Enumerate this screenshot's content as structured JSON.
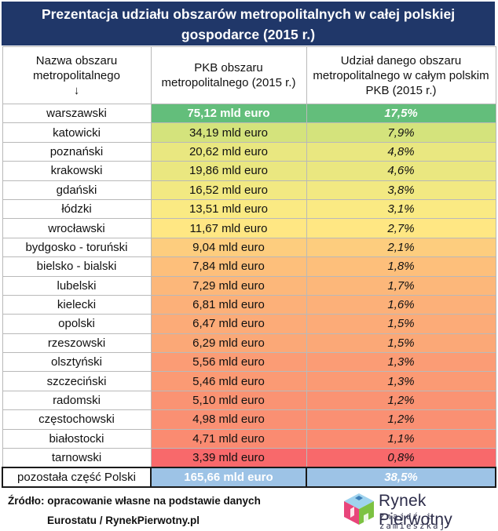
{
  "title": "Prezentacja udziału obszarów metropolitalnych w całej polskiej gospodarce (2015 r.)",
  "headers": {
    "name": "Nazwa obszaru metropolitalnego",
    "name_arrow": "↓",
    "pkb": "PKB obszaru metropolitalnego (2015 r.)",
    "share": "Udział danego obszaru metropolitalnego w całym polskim PKB (2015 r.)"
  },
  "colors": {
    "title_bg": "#203769",
    "top_row": "#63be7b",
    "total_row": "#9dc3e6",
    "scale_high": "#d4e37c",
    "scale_mid": "#ffeb84",
    "scale_low": "#f8696b"
  },
  "chart_data": {
    "type": "table",
    "title": "Prezentacja udziału obszarów metropolitalnych w całej polskiej gospodarce (2015 r.)",
    "columns": [
      "Nazwa obszaru metropolitalnego",
      "PKB obszaru metropolitalnego (2015 r.)",
      "Udział danego obszaru metropolitalnego w całym polskim PKB (2015 r.)"
    ],
    "rows": [
      {
        "name": "warszawski",
        "pkb": "75,12 mld euro",
        "share": "17,5%",
        "pkb_value": 75.12,
        "share_value": 17.5
      },
      {
        "name": "katowicki",
        "pkb": "34,19 mld euro",
        "share": "7,9%",
        "pkb_value": 34.19,
        "share_value": 7.9
      },
      {
        "name": "poznański",
        "pkb": "20,62 mld euro",
        "share": "4,8%",
        "pkb_value": 20.62,
        "share_value": 4.8
      },
      {
        "name": "krakowski",
        "pkb": "19,86 mld euro",
        "share": "4,6%",
        "pkb_value": 19.86,
        "share_value": 4.6
      },
      {
        "name": "gdański",
        "pkb": "16,52 mld euro",
        "share": "3,8%",
        "pkb_value": 16.52,
        "share_value": 3.8
      },
      {
        "name": "łódzki",
        "pkb": "13,51 mld euro",
        "share": "3,1%",
        "pkb_value": 13.51,
        "share_value": 3.1
      },
      {
        "name": "wrocławski",
        "pkb": "11,67 mld euro",
        "share": "2,7%",
        "pkb_value": 11.67,
        "share_value": 2.7
      },
      {
        "name": "bydgosko - toruński",
        "pkb": "9,04 mld euro",
        "share": "2,1%",
        "pkb_value": 9.04,
        "share_value": 2.1
      },
      {
        "name": "bielsko - bialski",
        "pkb": "7,84 mld euro",
        "share": "1,8%",
        "pkb_value": 7.84,
        "share_value": 1.8
      },
      {
        "name": "lubelski",
        "pkb": "7,29 mld euro",
        "share": "1,7%",
        "pkb_value": 7.29,
        "share_value": 1.7
      },
      {
        "name": "kielecki",
        "pkb": "6,81 mld euro",
        "share": "1,6%",
        "pkb_value": 6.81,
        "share_value": 1.6
      },
      {
        "name": "opolski",
        "pkb": "6,47 mld euro",
        "share": "1,5%",
        "pkb_value": 6.47,
        "share_value": 1.5
      },
      {
        "name": "rzeszowski",
        "pkb": "6,29 mld euro",
        "share": "1,5%",
        "pkb_value": 6.29,
        "share_value": 1.5
      },
      {
        "name": "olsztyński",
        "pkb": "5,56 mld euro",
        "share": "1,3%",
        "pkb_value": 5.56,
        "share_value": 1.3
      },
      {
        "name": "szczeciński",
        "pkb": "5,46 mld euro",
        "share": "1,3%",
        "pkb_value": 5.46,
        "share_value": 1.3
      },
      {
        "name": "radomski",
        "pkb": "5,10 mld euro",
        "share": "1,2%",
        "pkb_value": 5.1,
        "share_value": 1.2
      },
      {
        "name": "częstochowski",
        "pkb": "4,98 mld euro",
        "share": "1,2%",
        "pkb_value": 4.98,
        "share_value": 1.2
      },
      {
        "name": "białostocki",
        "pkb": "4,71 mld euro",
        "share": "1,1%",
        "pkb_value": 4.71,
        "share_value": 1.1
      },
      {
        "name": "tarnowski",
        "pkb": "3,39 mld euro",
        "share": "0,8%",
        "pkb_value": 3.39,
        "share_value": 0.8
      }
    ],
    "total": {
      "name": "pozostała część Polski",
      "pkb": "165,66 mld euro",
      "share": "38,5%",
      "pkb_value": 165.66,
      "share_value": 38.5
    }
  },
  "source": {
    "line1": "Źródło: opracowanie własne na podstawie danych",
    "line2": "Eurostatu / RynekPierwotny.pl"
  },
  "logo": {
    "name": "Rynek Pierwotny",
    "tagline": "znajdź i zamieszkaj",
    "icon": "house-cube-logo-icon"
  }
}
